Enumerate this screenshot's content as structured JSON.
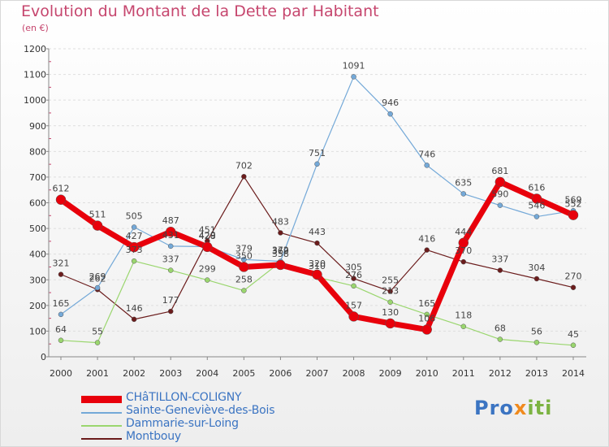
{
  "title": "Evolution du Montant de la Dette par Habitant",
  "unit": "(en €)",
  "logo": {
    "part1": "Pro",
    "part2": "x",
    "part3": "iti"
  },
  "chart_data": {
    "type": "line",
    "x": [
      "2000",
      "2001",
      "2002",
      "2003",
      "2004",
      "2005",
      "2006",
      "2007",
      "2008",
      "2009",
      "2010",
      "2011",
      "2012",
      "2013",
      "2014"
    ],
    "ylim": [
      0,
      1200
    ],
    "yticks": [
      0,
      100,
      200,
      300,
      400,
      500,
      600,
      700,
      800,
      900,
      1000,
      1100,
      1200
    ],
    "grid": true,
    "legend_position": "bottom-left",
    "series": [
      {
        "name": "Montbouy",
        "color": "#6b1c1c",
        "width": 1.2,
        "values": [
          321,
          262,
          146,
          177,
          451,
          702,
          483,
          443,
          305,
          255,
          416,
          370,
          337,
          304,
          270
        ]
      },
      {
        "name": "Dammarie-sur-Loing",
        "color": "#9ad66e",
        "width": 1.2,
        "values": [
          64,
          55,
          373,
          337,
          299,
          258,
          369,
          310,
          276,
          213,
          165,
          118,
          68,
          56,
          45
        ]
      },
      {
        "name": "Sainte-Geneviève-des-Bois",
        "color": "#74a9d8",
        "width": 1.2,
        "values": [
          165,
          269,
          505,
          431,
          429,
          379,
          372,
          751,
          1091,
          946,
          746,
          635,
          590,
          546,
          569
        ]
      },
      {
        "name": "CHâTILLON-COLIGNY",
        "color": "#e8000b",
        "width": 7,
        "values": [
          612,
          511,
          427,
          487,
          428,
          350,
          358,
          320,
          157,
          130,
          106,
          444,
          681,
          616,
          552
        ]
      }
    ],
    "data_labels": {
      "Montbouy": [
        "321",
        "262",
        "146",
        "177",
        "451",
        "702",
        "483",
        "443",
        "305",
        "255",
        "416",
        "370",
        "337",
        "304",
        "270"
      ],
      "Dammarie-sur-Loing": [
        "64",
        "55",
        "373",
        "337",
        "299",
        "258",
        "369",
        "310",
        "276",
        "213",
        "165",
        "118",
        "68",
        "56",
        "45"
      ],
      "Sainte-Geneviève-des-Bois": [
        "165",
        "269",
        "505",
        "431",
        "429",
        "379",
        "372",
        "751",
        "1091",
        "946",
        "746",
        "635",
        "590",
        "546",
        "569"
      ],
      "CHâTILLON-COLIGNY": [
        "612",
        "511",
        "427",
        "487",
        "428",
        "350",
        "358",
        "320",
        "157",
        "130",
        "106",
        "444",
        "681",
        "616",
        "552"
      ]
    },
    "legend": [
      "CHâTILLON-COLIGNY",
      "Sainte-Geneviève-des-Bois",
      "Dammarie-sur-Loing",
      "Montbouy"
    ],
    "legend_colors": {
      "CHâTILLON-COLIGNY": "#3b74c2",
      "Sainte-Geneviève-des-Bois": "#3b74c2",
      "Dammarie-sur-Loing": "#3b74c2",
      "Montbouy": "#3b74c2"
    }
  }
}
